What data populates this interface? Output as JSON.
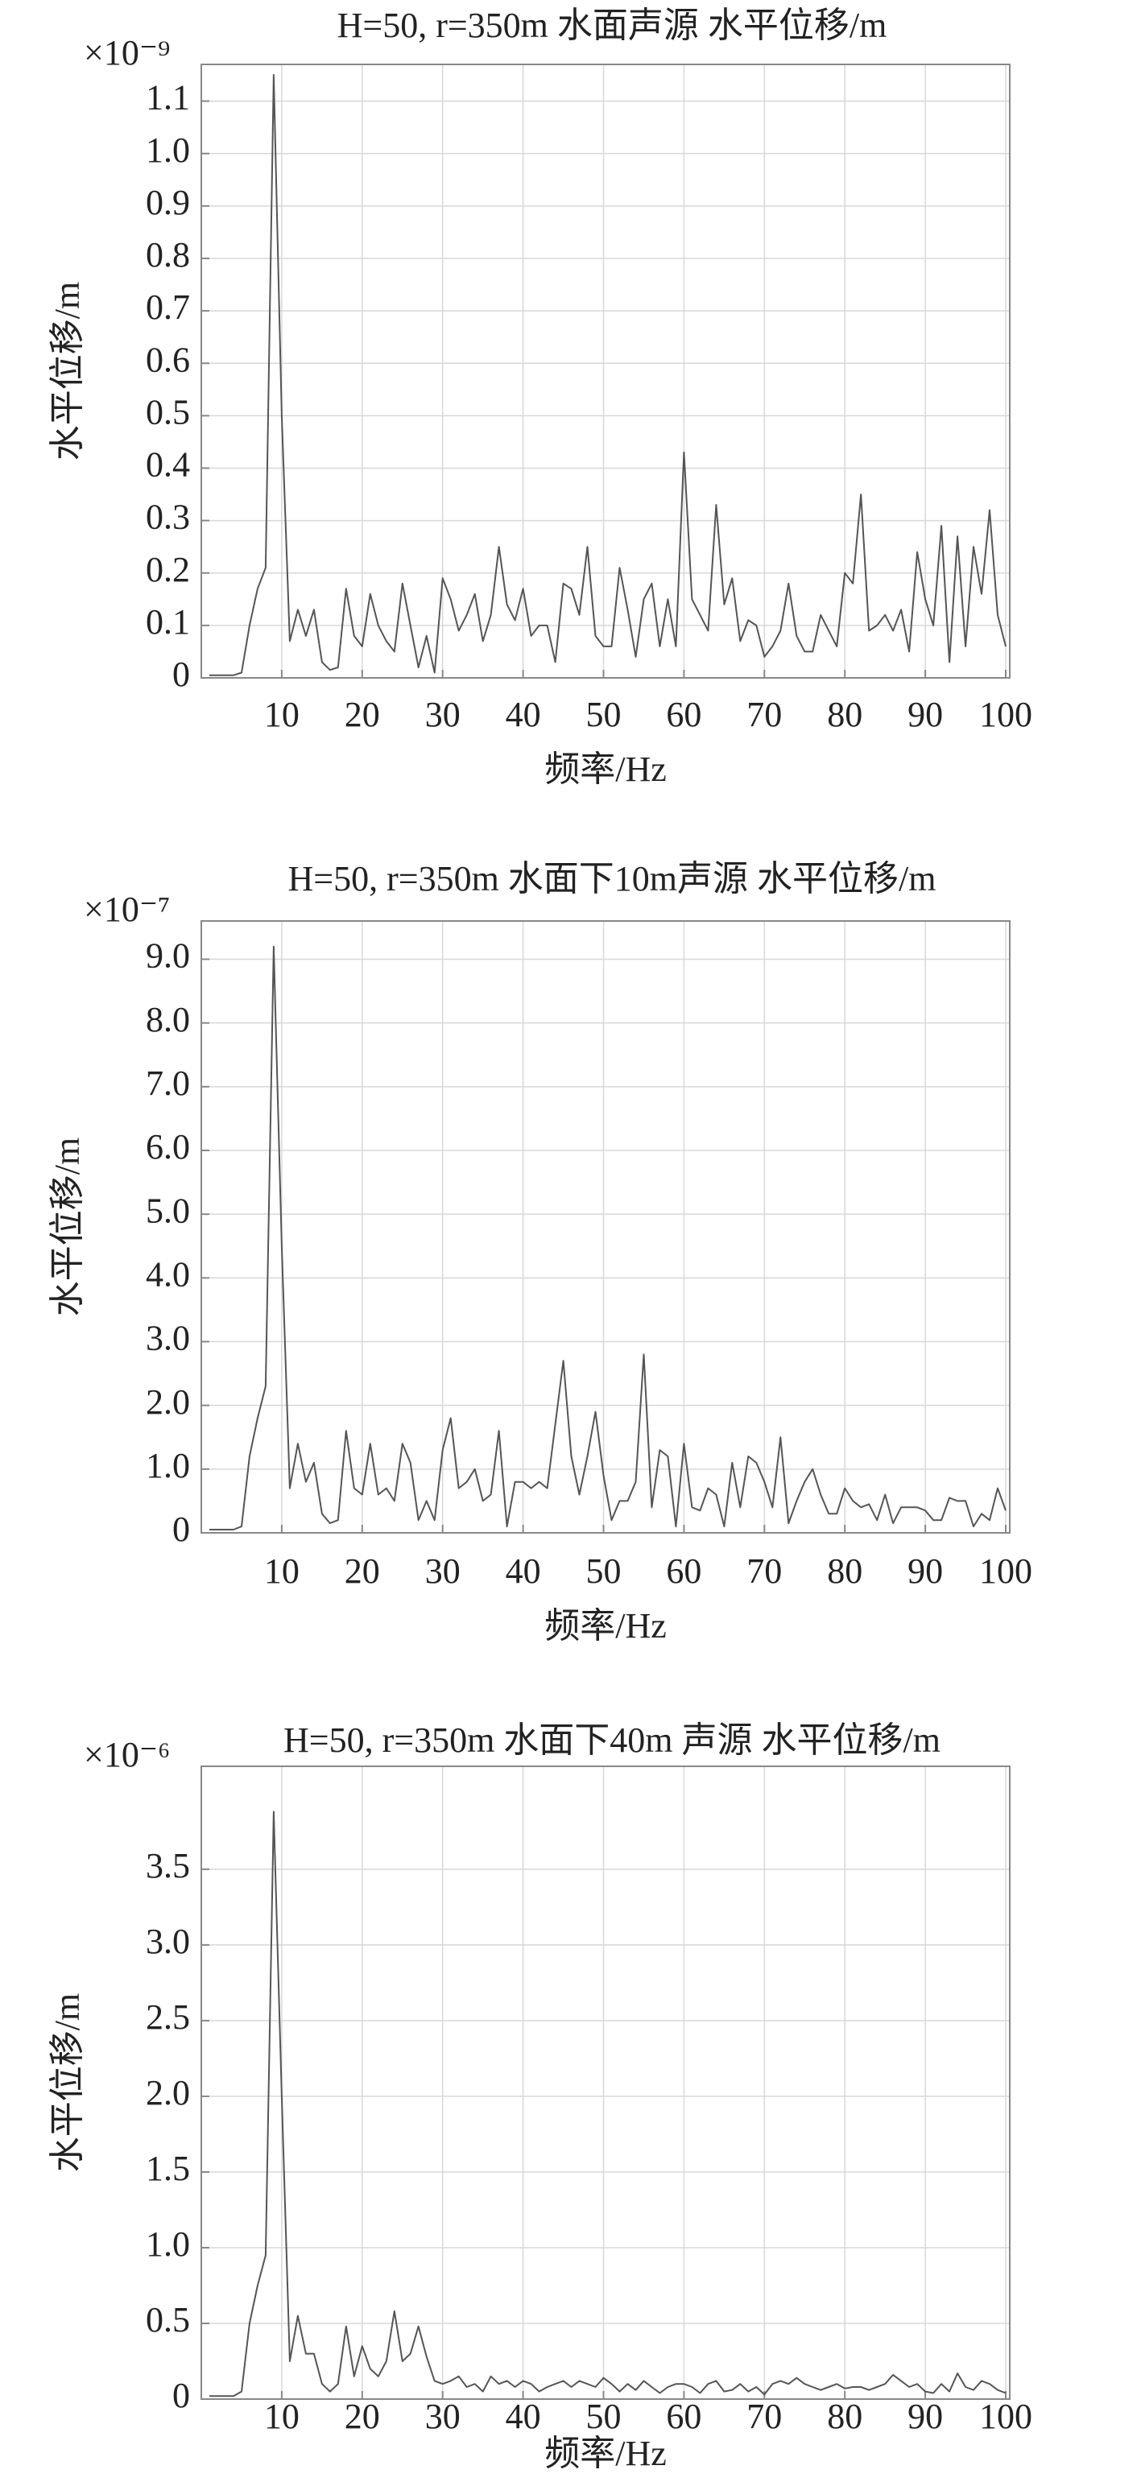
{
  "chart_data": [
    {
      "type": "line",
      "title": "H=50, r=350m 水面声源 水平位移/m",
      "multiplier": "×10⁻⁹",
      "y_label": "水平位移/m",
      "x_label": "频率/Hz",
      "grid": true,
      "xlim": [
        0,
        100.5
      ],
      "xticks": [
        10,
        20,
        30,
        40,
        50,
        60,
        70,
        80,
        90,
        100
      ],
      "ylim": [
        0,
        1.17
      ],
      "yticks": [
        0,
        0.1,
        0.2,
        0.3,
        0.4,
        0.5,
        0.6,
        0.7,
        0.8,
        0.9,
        {
          "value": 1,
          "label": "1.0"
        },
        1.1
      ],
      "x": [
        1,
        2,
        3,
        4,
        5,
        6,
        7,
        8,
        9,
        10,
        11,
        12,
        13,
        14,
        15,
        16,
        17,
        18,
        19,
        20,
        21,
        22,
        23,
        24,
        25,
        26,
        27,
        28,
        29,
        30,
        31,
        32,
        33,
        34,
        35,
        36,
        37,
        38,
        39,
        40,
        41,
        42,
        43,
        44,
        45,
        46,
        47,
        48,
        49,
        50,
        51,
        52,
        53,
        54,
        55,
        56,
        57,
        58,
        59,
        60,
        61,
        62,
        63,
        64,
        65,
        66,
        67,
        68,
        69,
        70,
        71,
        72,
        73,
        74,
        75,
        76,
        77,
        78,
        79,
        80,
        81,
        82,
        83,
        84,
        85,
        86,
        87,
        88,
        89,
        90,
        91,
        92,
        93,
        94,
        95,
        96,
        97,
        98,
        99,
        100
      ],
      "series": [
        {
          "color": "#555555",
          "values": [
            0.005,
            0.005,
            0.005,
            0.005,
            0.01,
            0.1,
            0.17,
            0.21,
            1.15,
            0.5,
            0.07,
            0.13,
            0.08,
            0.13,
            0.03,
            0.015,
            0.02,
            0.17,
            0.08,
            0.06,
            0.16,
            0.1,
            0.07,
            0.05,
            0.18,
            0.1,
            0.02,
            0.08,
            0.01,
            0.19,
            0.15,
            0.09,
            0.12,
            0.16,
            0.07,
            0.12,
            0.25,
            0.14,
            0.11,
            0.17,
            0.08,
            0.1,
            0.1,
            0.03,
            0.18,
            0.17,
            0.12,
            0.25,
            0.08,
            0.06,
            0.06,
            0.21,
            0.13,
            0.04,
            0.15,
            0.18,
            0.06,
            0.15,
            0.06,
            0.43,
            0.15,
            0.12,
            0.09,
            0.33,
            0.14,
            0.19,
            0.07,
            0.11,
            0.1,
            0.04,
            0.06,
            0.09,
            0.18,
            0.08,
            0.05,
            0.05,
            0.12,
            0.09,
            0.06,
            0.2,
            0.18,
            0.35,
            0.09,
            0.1,
            0.12,
            0.09,
            0.13,
            0.05,
            0.24,
            0.15,
            0.1,
            0.29,
            0.03,
            0.27,
            0.06,
            0.25,
            0.16,
            0.32,
            0.12,
            0.06
          ]
        }
      ]
    },
    {
      "type": "line",
      "title": "H=50, r=350m 水面下10m声源 水平位移/m",
      "multiplier": "×10⁻⁷",
      "y_label": "水平位移/m",
      "x_label": "频率/Hz",
      "grid": true,
      "xlim": [
        0,
        100.5
      ],
      "xticks": [
        10,
        20,
        30,
        40,
        50,
        60,
        70,
        80,
        90,
        100
      ],
      "ylim": [
        0,
        9.6
      ],
      "yticks": [
        0,
        {
          "value": 1,
          "label": "1.0"
        },
        {
          "value": 2,
          "label": "2.0"
        },
        {
          "value": 3,
          "label": "3.0"
        },
        {
          "value": 4,
          "label": "4.0"
        },
        {
          "value": 5,
          "label": "5.0"
        },
        {
          "value": 6,
          "label": "6.0"
        },
        {
          "value": 7,
          "label": "7.0"
        },
        {
          "value": 8,
          "label": "8.0"
        },
        {
          "value": 9,
          "label": "9.0"
        }
      ],
      "x": [
        1,
        2,
        3,
        4,
        5,
        6,
        7,
        8,
        9,
        10,
        11,
        12,
        13,
        14,
        15,
        16,
        17,
        18,
        19,
        20,
        21,
        22,
        23,
        24,
        25,
        26,
        27,
        28,
        29,
        30,
        31,
        32,
        33,
        34,
        35,
        36,
        37,
        38,
        39,
        40,
        41,
        42,
        43,
        44,
        45,
        46,
        47,
        48,
        49,
        50,
        51,
        52,
        53,
        54,
        55,
        56,
        57,
        58,
        59,
        60,
        61,
        62,
        63,
        64,
        65,
        66,
        67,
        68,
        69,
        70,
        71,
        72,
        73,
        74,
        75,
        76,
        77,
        78,
        79,
        80,
        81,
        82,
        83,
        84,
        85,
        86,
        87,
        88,
        89,
        90,
        91,
        92,
        93,
        94,
        95,
        96,
        97,
        98,
        99,
        100
      ],
      "series": [
        {
          "color": "#555555",
          "values": [
            0.05,
            0.05,
            0.05,
            0.05,
            0.1,
            1.2,
            1.8,
            2.3,
            9.2,
            4.5,
            0.7,
            1.4,
            0.8,
            1.1,
            0.3,
            0.15,
            0.2,
            1.6,
            0.7,
            0.6,
            1.4,
            0.6,
            0.7,
            0.5,
            1.4,
            1.1,
            0.2,
            0.5,
            0.2,
            1.3,
            1.8,
            0.7,
            0.8,
            1.0,
            0.5,
            0.6,
            1.6,
            0.1,
            0.8,
            0.8,
            0.7,
            0.8,
            0.7,
            1.7,
            2.7,
            1.2,
            0.6,
            1.2,
            1.9,
            0.9,
            0.2,
            0.5,
            0.5,
            0.8,
            2.8,
            0.4,
            1.3,
            1.2,
            0.1,
            1.4,
            0.4,
            0.35,
            0.7,
            0.6,
            0.1,
            1.1,
            0.4,
            1.2,
            1.1,
            0.8,
            0.4,
            1.5,
            0.15,
            0.5,
            0.8,
            1.0,
            0.6,
            0.3,
            0.3,
            0.7,
            0.5,
            0.4,
            0.45,
            0.2,
            0.6,
            0.15,
            0.4,
            0.4,
            0.4,
            0.35,
            0.2,
            0.2,
            0.55,
            0.5,
            0.5,
            0.1,
            0.3,
            0.2,
            0.7,
            0.35
          ]
        }
      ]
    },
    {
      "type": "line",
      "title": "H=50, r=350m 水面下40m 声源 水平位移/m",
      "multiplier": "×10⁻⁶",
      "y_label": "水平位移/m",
      "x_label": "频率/Hz",
      "grid": true,
      "xlim": [
        0,
        100.5
      ],
      "xticks": [
        10,
        20,
        30,
        40,
        50,
        60,
        70,
        80,
        90,
        100
      ],
      "ylim": [
        0,
        4.18
      ],
      "yticks": [
        0,
        0.5,
        {
          "value": 1,
          "label": "1.0"
        },
        1.5,
        {
          "value": 2,
          "label": "2.0"
        },
        2.5,
        {
          "value": 3,
          "label": "3.0"
        },
        3.5
      ],
      "x": [
        1,
        2,
        3,
        4,
        5,
        6,
        7,
        8,
        9,
        10,
        11,
        12,
        13,
        14,
        15,
        16,
        17,
        18,
        19,
        20,
        21,
        22,
        23,
        24,
        25,
        26,
        27,
        28,
        29,
        30,
        31,
        32,
        33,
        34,
        35,
        36,
        37,
        38,
        39,
        40,
        41,
        42,
        43,
        44,
        45,
        46,
        47,
        48,
        49,
        50,
        51,
        52,
        53,
        54,
        55,
        56,
        57,
        58,
        59,
        60,
        61,
        62,
        63,
        64,
        65,
        66,
        67,
        68,
        69,
        70,
        71,
        72,
        73,
        74,
        75,
        76,
        77,
        78,
        79,
        80,
        81,
        82,
        83,
        84,
        85,
        86,
        87,
        88,
        89,
        90,
        91,
        92,
        93,
        94,
        95,
        96,
        97,
        98,
        99,
        100
      ],
      "series": [
        {
          "color": "#555555",
          "values": [
            0.02,
            0.02,
            0.02,
            0.02,
            0.05,
            0.5,
            0.75,
            0.95,
            3.88,
            2.0,
            0.25,
            0.55,
            0.3,
            0.3,
            0.1,
            0.05,
            0.1,
            0.48,
            0.15,
            0.35,
            0.2,
            0.15,
            0.25,
            0.58,
            0.25,
            0.3,
            0.48,
            0.28,
            0.12,
            0.1,
            0.12,
            0.15,
            0.08,
            0.1,
            0.05,
            0.15,
            0.1,
            0.12,
            0.08,
            0.12,
            0.1,
            0.05,
            0.08,
            0.1,
            0.12,
            0.08,
            0.12,
            0.1,
            0.08,
            0.14,
            0.1,
            0.05,
            0.1,
            0.06,
            0.12,
            0.08,
            0.04,
            0.08,
            0.1,
            0.1,
            0.08,
            0.04,
            0.1,
            0.12,
            0.05,
            0.06,
            0.1,
            0.05,
            0.08,
            0.03,
            0.1,
            0.12,
            0.1,
            0.14,
            0.1,
            0.08,
            0.06,
            0.08,
            0.1,
            0.07,
            0.08,
            0.08,
            0.06,
            0.08,
            0.1,
            0.16,
            0.12,
            0.08,
            0.1,
            0.05,
            0.04,
            0.1,
            0.05,
            0.17,
            0.08,
            0.06,
            0.12,
            0.1,
            0.06,
            0.04
          ]
        }
      ]
    }
  ]
}
